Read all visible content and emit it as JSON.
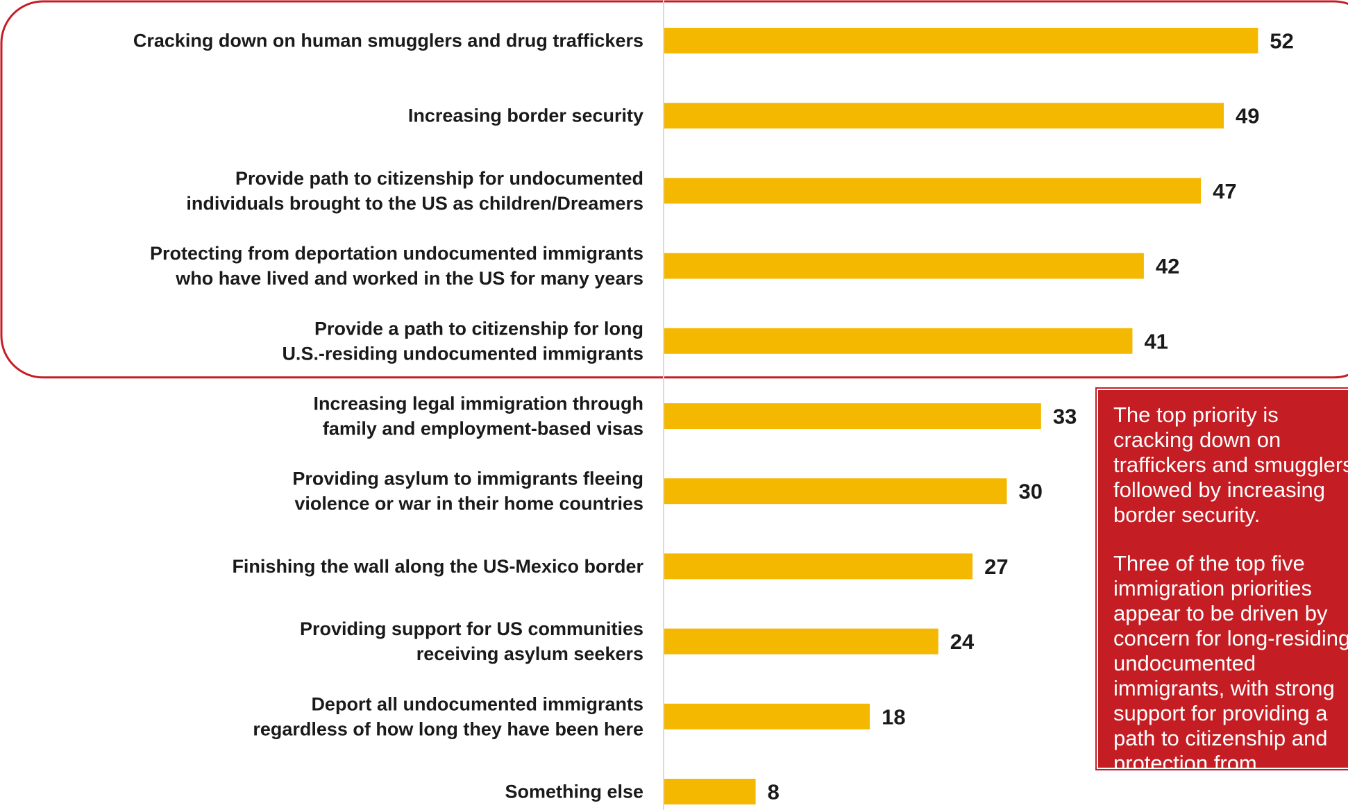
{
  "chart_data": {
    "type": "bar",
    "orientation": "horizontal",
    "categories": [
      [
        "Cracking down on human smugglers and drug traffickers"
      ],
      [
        "Increasing border security"
      ],
      [
        "Provide path to citizenship for undocumented",
        "individuals brought to the US as children/Dreamers"
      ],
      [
        "Protecting from deportation undocumented immigrants",
        "who have lived and worked in the US for many years"
      ],
      [
        "Provide a path to citizenship for long",
        "U.S.-residing undocumented immigrants"
      ],
      [
        "Increasing legal immigration through",
        "family and employment-based visas"
      ],
      [
        "Providing asylum to immigrants fleeing",
        "violence or war in their home countries"
      ],
      [
        "Finishing the wall along the US-Mexico border"
      ],
      [
        "Providing support for US communities",
        "receiving asylum seekers"
      ],
      [
        "Deport all undocumented immigrants",
        "regardless of how long they have been here"
      ],
      [
        "Something else"
      ]
    ],
    "values": [
      52,
      49,
      47,
      42,
      41,
      33,
      30,
      27,
      24,
      18,
      8
    ],
    "highlighted_top_n": 5,
    "bar_color": "#f5b800",
    "highlight_border_color": "#c41e24",
    "axis_line_color": "#d9d9d9"
  },
  "callout": {
    "paragraphs": [
      "The top priority is cracking down on traffickers and smugglers, followed by increasing border security.",
      "Three of the top five immigration priorities appear to be driven by concern for long-residing undocumented immigrants, with strong support for providing a path to citizenship and protection from deportation."
    ],
    "background_color": "#c41e24",
    "text_color": "#ffffff"
  }
}
